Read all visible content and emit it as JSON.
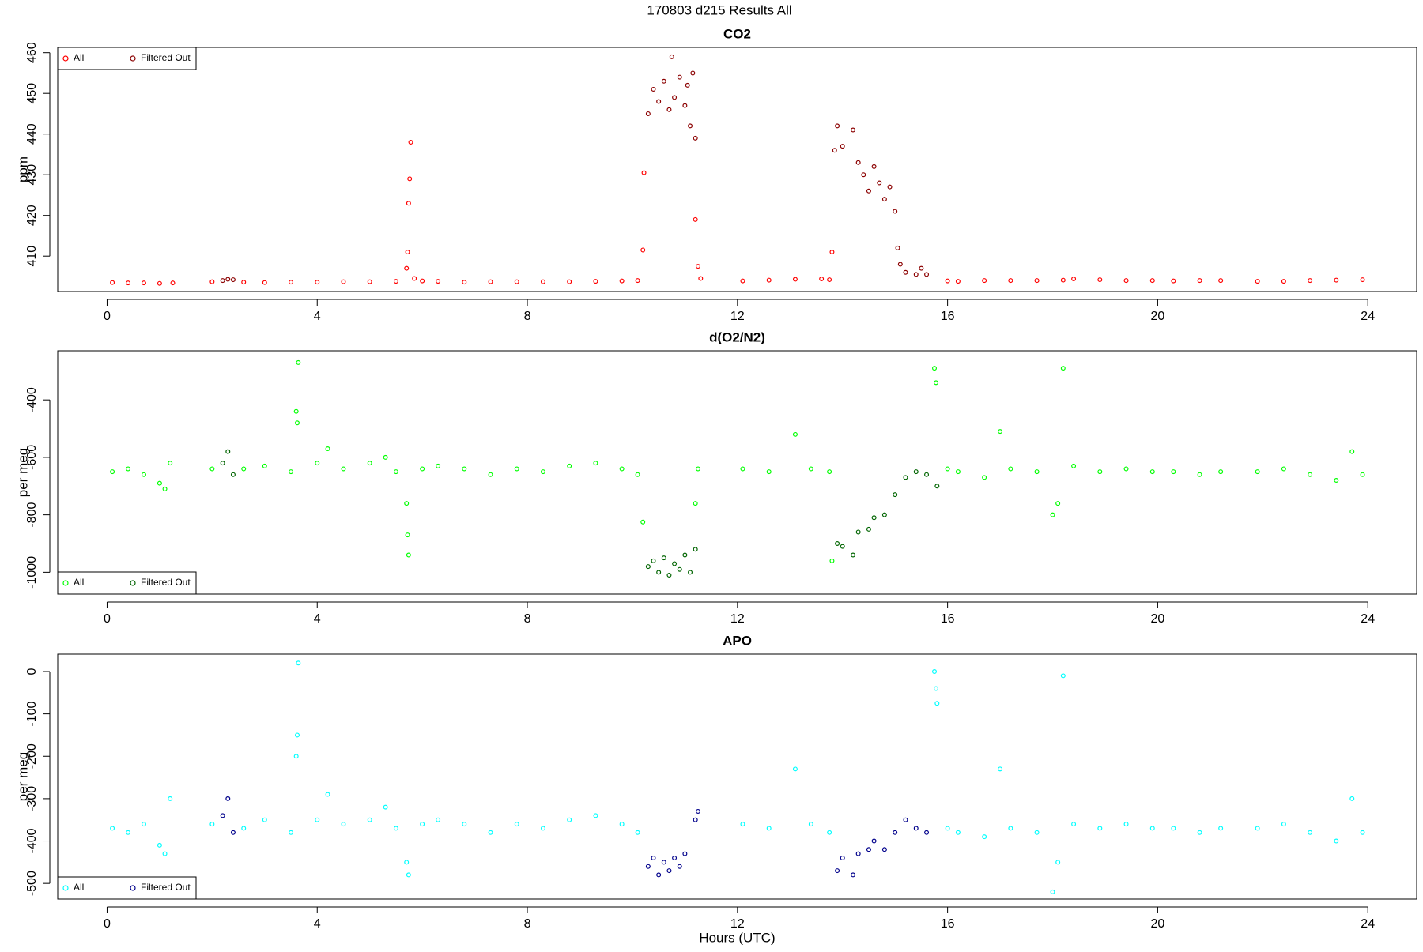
{
  "suptitle": "170803   d215   Results All",
  "chart_data": [
    {
      "type": "scatter",
      "title": "CO2",
      "ylabel": "ppm",
      "legend": "topleft",
      "xlim": [
        -0.94,
        24.93
      ],
      "xticks": [
        0,
        4,
        8,
        12,
        16,
        20,
        24
      ],
      "ylim": [
        401.3,
        461.3
      ],
      "yticks": [
        410,
        420,
        430,
        440,
        450,
        460
      ],
      "series": [
        {
          "name": "All",
          "color": "#ff0000",
          "x": [
            0.1,
            0.4,
            0.7,
            1.0,
            1.25,
            2.0,
            2.6,
            3.0,
            3.5,
            4.0,
            4.5,
            5.0,
            5.5,
            5.7,
            5.72,
            5.74,
            5.76,
            5.78,
            5.85,
            6.0,
            6.3,
            6.8,
            7.3,
            7.8,
            8.3,
            8.8,
            9.3,
            9.8,
            10.1,
            10.2,
            10.22,
            11.2,
            11.25,
            11.3,
            12.1,
            12.6,
            13.1,
            13.6,
            13.75,
            13.8,
            16.0,
            16.2,
            16.7,
            17.2,
            17.7,
            18.2,
            18.4,
            18.9,
            19.4,
            19.9,
            20.3,
            20.8,
            21.2,
            21.9,
            22.4,
            22.9,
            23.4,
            23.9
          ],
          "values": [
            403.5,
            403.4,
            403.4,
            403.3,
            403.4,
            403.7,
            403.6,
            403.5,
            403.6,
            403.6,
            403.7,
            403.7,
            403.8,
            407,
            411,
            423,
            429,
            438,
            404.5,
            403.9,
            403.8,
            403.6,
            403.7,
            403.7,
            403.7,
            403.7,
            403.8,
            403.9,
            404,
            411.5,
            430.5,
            419,
            407.5,
            404.5,
            403.9,
            404.1,
            404.3,
            404.4,
            404.2,
            411,
            403.9,
            403.8,
            404,
            404,
            404,
            404.1,
            404.4,
            404.2,
            404,
            404,
            403.9,
            404,
            404,
            403.8,
            403.8,
            404,
            404.1,
            404.2
          ]
        },
        {
          "name": "Filtered Out",
          "color": "#8b0000",
          "x": [
            2.2,
            2.3,
            2.4,
            10.3,
            10.4,
            10.5,
            10.6,
            10.7,
            10.75,
            10.8,
            10.9,
            11.0,
            11.05,
            11.1,
            11.15,
            11.2,
            13.85,
            13.9,
            14.0,
            14.2,
            14.3,
            14.4,
            14.5,
            14.6,
            14.7,
            14.8,
            14.9,
            15.0,
            15.05,
            15.1,
            15.2,
            15.4,
            15.5,
            15.6
          ],
          "values": [
            404,
            404.3,
            404.2,
            445,
            451,
            448,
            453,
            446,
            459,
            449,
            454,
            447,
            452,
            442,
            455,
            439,
            436,
            442,
            437,
            441,
            433,
            430,
            426,
            432,
            428,
            424,
            427,
            421,
            412,
            408,
            406,
            405.5,
            407,
            405.5
          ]
        }
      ]
    },
    {
      "type": "scatter",
      "title": "d(O2/N2)",
      "ylabel": "per meg",
      "legend": "bottomleft",
      "xlim": [
        -0.94,
        24.93
      ],
      "xticks": [
        0,
        4,
        8,
        12,
        16,
        20,
        24
      ],
      "ylim": [
        -1076,
        -229
      ],
      "yticks": [
        -1000,
        -800,
        -600,
        -400
      ],
      "series": [
        {
          "name": "All",
          "color": "#00ff00",
          "x": [
            0.1,
            0.4,
            0.7,
            1.0,
            1.1,
            1.2,
            2.0,
            2.6,
            3.0,
            3.5,
            3.6,
            3.62,
            3.64,
            4.0,
            4.2,
            4.5,
            5.0,
            5.3,
            5.5,
            5.7,
            5.72,
            5.74,
            6.0,
            6.3,
            6.8,
            7.3,
            7.8,
            8.3,
            8.8,
            9.3,
            9.8,
            10.1,
            10.2,
            11.2,
            11.25,
            12.1,
            12.6,
            13.1,
            13.4,
            13.75,
            13.8,
            15.75,
            15.78,
            16.0,
            16.2,
            16.7,
            17.0,
            17.2,
            17.7,
            18.0,
            18.1,
            18.2,
            18.4,
            18.9,
            19.4,
            19.9,
            20.3,
            20.8,
            21.2,
            21.9,
            22.4,
            22.9,
            23.4,
            23.7,
            23.9
          ],
          "values": [
            -650,
            -640,
            -660,
            -690,
            -710,
            -620,
            -640,
            -640,
            -630,
            -650,
            -440,
            -480,
            -270,
            -620,
            -570,
            -640,
            -620,
            -600,
            -650,
            -760,
            -870,
            -940,
            -640,
            -630,
            -640,
            -660,
            -640,
            -650,
            -630,
            -620,
            -640,
            -660,
            -825,
            -760,
            -640,
            -640,
            -650,
            -520,
            -640,
            -650,
            -960,
            -290,
            -340,
            -640,
            -650,
            -670,
            -510,
            -640,
            -650,
            -800,
            -760,
            -290,
            -630,
            -650,
            -640,
            -650,
            -650,
            -660,
            -650,
            -650,
            -640,
            -660,
            -680,
            -580,
            -660
          ]
        },
        {
          "name": "Filtered Out",
          "color": "#006400",
          "x": [
            2.2,
            2.3,
            2.4,
            10.3,
            10.4,
            10.5,
            10.6,
            10.7,
            10.8,
            10.9,
            11.0,
            11.1,
            11.2,
            13.9,
            14.0,
            14.2,
            14.3,
            14.5,
            14.6,
            14.8,
            15.0,
            15.2,
            15.4,
            15.6,
            15.8
          ],
          "values": [
            -620,
            -580,
            -660,
            -980,
            -960,
            -1000,
            -950,
            -1010,
            -970,
            -990,
            -940,
            -1000,
            -920,
            -900,
            -910,
            -940,
            -860,
            -850,
            -810,
            -800,
            -730,
            -670,
            -650,
            -660,
            -700
          ]
        }
      ]
    },
    {
      "type": "scatter",
      "title": "APO",
      "ylabel": "per meg",
      "xlabel": "Hours (UTC)",
      "legend": "bottomleft",
      "xlim": [
        -0.94,
        24.93
      ],
      "xticks": [
        0,
        4,
        8,
        12,
        16,
        20,
        24
      ],
      "ylim": [
        -537,
        41
      ],
      "yticks": [
        -500,
        -400,
        -300,
        -200,
        -100,
        0
      ],
      "series": [
        {
          "name": "All",
          "color": "#00ffff",
          "x": [
            0.1,
            0.4,
            0.7,
            1.0,
            1.1,
            1.2,
            2.0,
            2.6,
            3.0,
            3.5,
            3.6,
            3.62,
            3.64,
            4.0,
            4.2,
            4.5,
            5.0,
            5.3,
            5.5,
            5.7,
            5.74,
            6.0,
            6.3,
            6.8,
            7.3,
            7.8,
            8.3,
            8.8,
            9.3,
            9.8,
            10.1,
            12.1,
            12.6,
            13.1,
            13.4,
            13.75,
            15.75,
            15.78,
            15.8,
            16.0,
            16.2,
            16.7,
            17.0,
            17.2,
            17.7,
            18.0,
            18.1,
            18.2,
            18.4,
            18.9,
            19.4,
            19.9,
            20.3,
            20.8,
            21.2,
            21.9,
            22.4,
            22.9,
            23.4,
            23.7,
            23.9
          ],
          "values": [
            -370,
            -380,
            -360,
            -410,
            -430,
            -300,
            -360,
            -370,
            -350,
            -380,
            -200,
            -150,
            20,
            -350,
            -290,
            -360,
            -350,
            -320,
            -370,
            -450,
            -480,
            -360,
            -350,
            -360,
            -380,
            -360,
            -370,
            -350,
            -340,
            -360,
            -380,
            -360,
            -370,
            -230,
            -360,
            -380,
            0,
            -40,
            -75,
            -370,
            -380,
            -390,
            -230,
            -370,
            -380,
            -520,
            -450,
            -10,
            -360,
            -370,
            -360,
            -370,
            -370,
            -380,
            -370,
            -370,
            -360,
            -380,
            -400,
            -300,
            -380
          ]
        },
        {
          "name": "Filtered Out",
          "color": "#00008b",
          "x": [
            2.2,
            2.3,
            2.4,
            10.3,
            10.4,
            10.5,
            10.6,
            10.7,
            10.8,
            10.9,
            11.0,
            11.2,
            11.25,
            13.9,
            14.0,
            14.2,
            14.3,
            14.5,
            14.6,
            14.8,
            15.0,
            15.2,
            15.4,
            15.6
          ],
          "values": [
            -340,
            -300,
            -380,
            -460,
            -440,
            -480,
            -450,
            -470,
            -440,
            -460,
            -430,
            -350,
            -330,
            -470,
            -440,
            -480,
            -430,
            -420,
            -400,
            -420,
            -380,
            -350,
            -370,
            -380
          ]
        }
      ]
    }
  ]
}
